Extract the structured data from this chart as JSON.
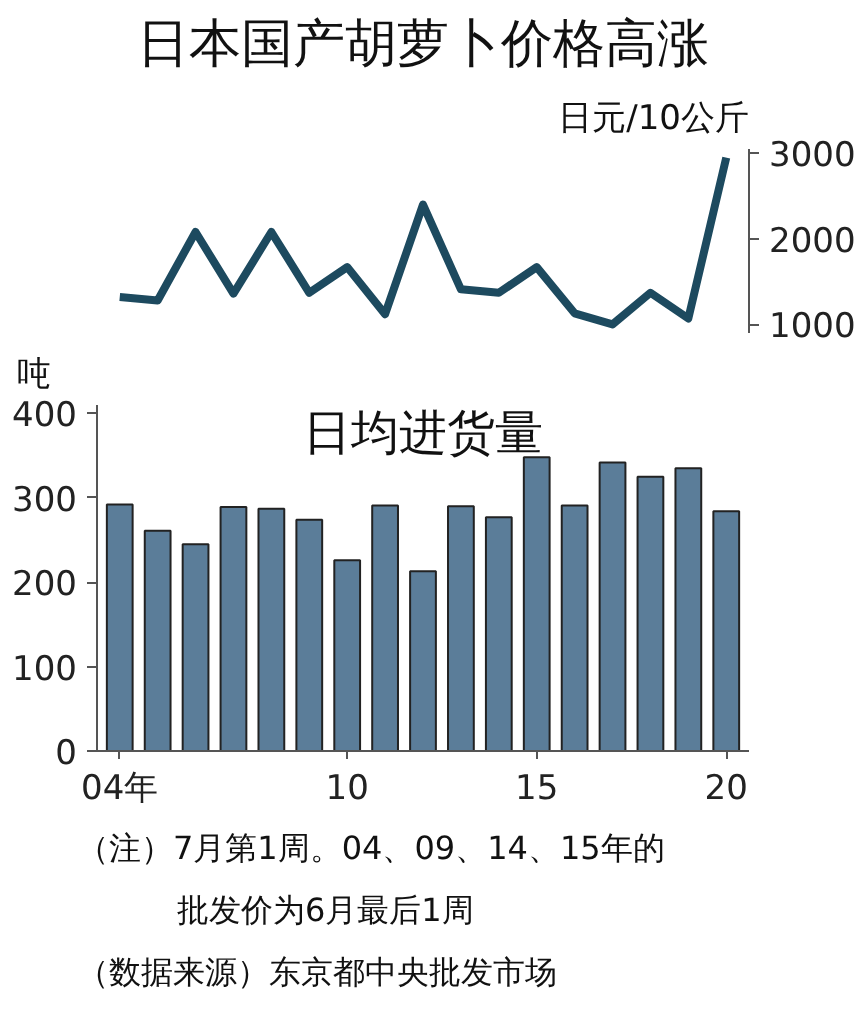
{
  "chart_data": [
    {
      "type": "line",
      "title": "日本国产胡萝卜价格高涨",
      "ylabel": "日元/10公斤",
      "x": [
        4,
        5,
        6,
        7,
        8,
        9,
        10,
        11,
        12,
        13,
        14,
        15,
        16,
        17,
        18,
        19,
        20
      ],
      "series": [
        {
          "color": "#1d4a5f",
          "values": [
            1320,
            1280,
            2080,
            1360,
            2080,
            1370,
            1670,
            1120,
            2400,
            1410,
            1370,
            1670,
            1130,
            1000,
            1370,
            1070,
            2950
          ]
        }
      ],
      "ylim": [
        900,
        3050
      ],
      "yticks": [
        1000,
        2000,
        3000
      ],
      "tick_labels": "y",
      "grid": false,
      "marker": "none",
      "line_style": "solid"
    },
    {
      "type": "bar",
      "title": "日均进货量",
      "ylabel": "吨",
      "x": [
        4,
        5,
        6,
        7,
        8,
        9,
        10,
        11,
        12,
        13,
        14,
        15,
        16,
        17,
        18,
        19,
        20
      ],
      "series": [
        {
          "color": "#5b7d99",
          "values": [
            292,
            261,
            245,
            289,
            287,
            274,
            226,
            291,
            213,
            290,
            277,
            348,
            291,
            342,
            325,
            335,
            284
          ]
        }
      ],
      "xlim": [
        3.4,
        20.6
      ],
      "xticks": [
        {
          "value": 4,
          "label": "04年"
        },
        10,
        15,
        20
      ],
      "ylim": [
        0,
        410
      ],
      "yticks": [
        0,
        100,
        200,
        300,
        400
      ],
      "grid": false,
      "annotations": [
        "（注）7月第1周。04、09、14、15年的批发价为6月最后1周",
        "（数据来源）东京都中央批发市场"
      ]
    }
  ]
}
